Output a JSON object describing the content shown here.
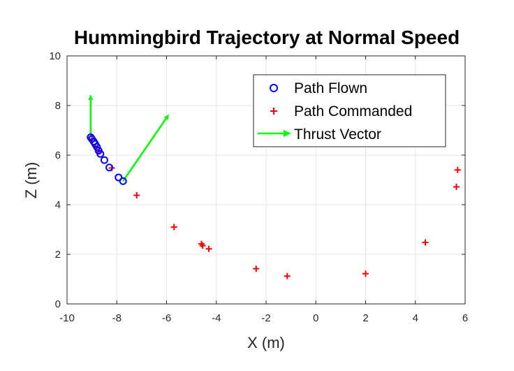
{
  "chart_data": {
    "type": "scatter",
    "title": "Hummingbird Trajectory at Normal Speed",
    "xlabel": "X (m)",
    "ylabel": "Z (m)",
    "xlim": [
      -10,
      6
    ],
    "ylim": [
      0,
      10
    ],
    "xticks": [
      "-10",
      "-8",
      "-6",
      "-4",
      "-2",
      "0",
      "2",
      "4",
      "6"
    ],
    "yticks": [
      "0",
      "2",
      "4",
      "6",
      "8",
      "10"
    ],
    "grid": true,
    "legend_position": "top-right",
    "series": [
      {
        "name": "Path Flown",
        "marker": "circle",
        "color": "#0000ff",
        "points": [
          [
            -9.05,
            6.72
          ],
          [
            -9.0,
            6.65
          ],
          [
            -8.93,
            6.55
          ],
          [
            -8.87,
            6.45
          ],
          [
            -8.8,
            6.33
          ],
          [
            -8.73,
            6.18
          ],
          [
            -8.66,
            6.05
          ],
          [
            -8.5,
            5.8
          ],
          [
            -8.3,
            5.5
          ],
          [
            -7.93,
            5.1
          ],
          [
            -7.75,
            4.95
          ]
        ]
      },
      {
        "name": "Path Commanded",
        "marker": "plus",
        "color": "#ff0000",
        "points": [
          [
            -9.0,
            6.65
          ],
          [
            -8.85,
            6.35
          ],
          [
            -8.7,
            6.15
          ],
          [
            -8.2,
            5.48
          ],
          [
            -7.2,
            4.38
          ],
          [
            -5.7,
            3.1
          ],
          [
            -4.6,
            2.42
          ],
          [
            -4.55,
            2.35
          ],
          [
            -4.3,
            2.22
          ],
          [
            -2.4,
            1.42
          ],
          [
            -1.15,
            1.12
          ],
          [
            2.0,
            1.22
          ],
          [
            4.4,
            2.48
          ],
          [
            5.65,
            4.72
          ],
          [
            5.7,
            5.4
          ]
        ]
      },
      {
        "name": "Thrust Vector",
        "marker": "arrow",
        "color": "#00ff00",
        "vectors": [
          {
            "from": [
              -9.05,
              6.72
            ],
            "to": [
              -9.05,
              8.45
            ]
          },
          {
            "from": [
              -7.75,
              4.95
            ],
            "to": [
              -5.9,
              7.65
            ]
          }
        ]
      }
    ]
  }
}
